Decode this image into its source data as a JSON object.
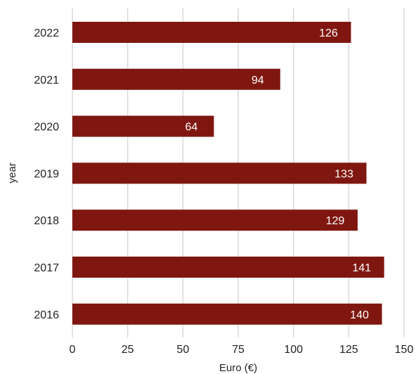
{
  "chart_data": {
    "type": "bar",
    "orientation": "horizontal",
    "categories": [
      "2022",
      "2021",
      "2020",
      "2019",
      "2018",
      "2017",
      "2016"
    ],
    "values": [
      126,
      94,
      64,
      133,
      129,
      141,
      140
    ],
    "xlabel": "Euro (€)",
    "ylabel": "year",
    "xlim": [
      0,
      150
    ],
    "xticks": [
      "0",
      "25",
      "50",
      "75",
      "100",
      "125",
      "150"
    ],
    "grid": "vertical",
    "bar_color": "#7f1710",
    "data_label_color": "#ffffff",
    "data_labels": "inside-end"
  }
}
